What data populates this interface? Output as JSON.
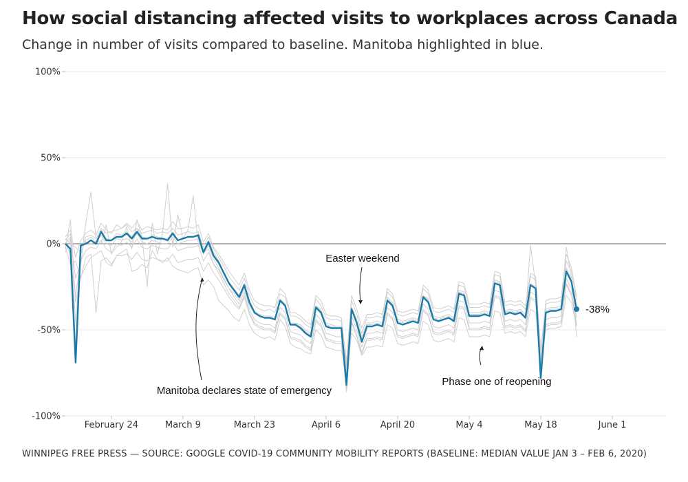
{
  "title": "How social distancing affected visits to workplaces across Canada",
  "subtitle": "Change in number of visits compared to baseline. Manitoba highlighted in blue.",
  "footer": "WINNIPEG FREE PRESS — SOURCE: GOOGLE COVID-19 COMMUNITY MOBILITY REPORTS (BASELINE: MEDIAN VALUE JAN 3 – FEB 6, 2020)",
  "colors": {
    "highlight": "#1a7aa8",
    "context": "#cfcfcf",
    "grid": "#e8e8e8",
    "zero": "#999999"
  },
  "chart_data": {
    "type": "line",
    "x_start": "2020-02-15",
    "ylim": [
      -100,
      100
    ],
    "yticks": [
      {
        "value": 100,
        "label": "100%"
      },
      {
        "value": 50,
        "label": "50%"
      },
      {
        "value": 0,
        "label": "0%"
      },
      {
        "value": -50,
        "label": "-50%"
      },
      {
        "value": -100,
        "label": "-100%"
      }
    ],
    "xticks": [
      {
        "date": "2020-02-24",
        "label": "February 24"
      },
      {
        "date": "2020-03-09",
        "label": "March  9"
      },
      {
        "date": "2020-03-23",
        "label": "March 23"
      },
      {
        "date": "2020-04-06",
        "label": "April  6"
      },
      {
        "date": "2020-04-20",
        "label": "April 20"
      },
      {
        "date": "2020-05-04",
        "label": "May  4"
      },
      {
        "date": "2020-05-18",
        "label": "May 18"
      },
      {
        "date": "2020-06-01",
        "label": "June  1"
      }
    ],
    "highlight_series": {
      "name": "Manitoba",
      "values": [
        0,
        -3,
        -69,
        -1,
        0,
        2,
        0,
        7,
        2,
        2,
        4,
        4,
        6,
        3,
        7,
        3,
        3,
        4,
        3,
        3,
        2,
        6,
        2,
        3,
        4,
        4,
        5,
        -5,
        1,
        -7,
        -11,
        -17,
        -23,
        -27,
        -31,
        -24,
        -34,
        -40,
        -42,
        -43,
        -43,
        -44,
        -33,
        -36,
        -47,
        -47,
        -49,
        -52,
        -54,
        -37,
        -40,
        -48,
        -49,
        -49,
        -49,
        -82,
        -38,
        -46,
        -57,
        -48,
        -48,
        -47,
        -48,
        -33,
        -36,
        -46,
        -47,
        -46,
        -45,
        -46,
        -31,
        -34,
        -44,
        -45,
        -44,
        -43,
        -45,
        -29,
        -30,
        -42,
        -42,
        -42,
        -41,
        -42,
        -23,
        -24,
        -41,
        -40,
        -41,
        -40,
        -43,
        -24,
        -26,
        -78,
        -40,
        -39,
        -39,
        -38,
        -16,
        -22,
        -38
      ],
      "end_label": "-38%"
    },
    "context_series": [
      {
        "values": [
          -3,
          14,
          -34,
          -19,
          -13,
          -8,
          -6,
          -4,
          -11,
          -13,
          -7,
          -5,
          -3,
          -16,
          -15,
          -12,
          -14,
          -4,
          -9,
          -11,
          -8,
          -13,
          -15,
          -16,
          -17,
          -15,
          -14,
          -24,
          -21,
          -25,
          -33,
          -36,
          -39,
          -43,
          -45,
          -38,
          -47,
          -52,
          -54,
          -55,
          -54,
          -56,
          -44,
          -48,
          -58,
          -60,
          -61,
          -63,
          -64,
          -50,
          -53,
          -60,
          -61,
          -62,
          -62,
          -77,
          -52,
          -56,
          -65,
          -60,
          -60,
          -59,
          -60,
          -47,
          -49,
          -58,
          -59,
          -58,
          -57,
          -58,
          -45,
          -47,
          -56,
          -57,
          -56,
          -55,
          -57,
          -43,
          -44,
          -54,
          -54,
          -54,
          -53,
          -54,
          -39,
          -40,
          -52,
          -51,
          -52,
          -51,
          -54,
          -38,
          -40,
          -70,
          -50,
          -49,
          -49,
          -48,
          -30,
          -34,
          -48
        ]
      },
      {
        "values": [
          2,
          6,
          -46,
          -6,
          4,
          5,
          3,
          9,
          6,
          7,
          8,
          9,
          11,
          7,
          9,
          6,
          7,
          8,
          6,
          7,
          6,
          9,
          5,
          6,
          7,
          6,
          7,
          -2,
          4,
          -3,
          -8,
          -13,
          -19,
          -23,
          -27,
          -20,
          -30,
          -36,
          -38,
          -39,
          -38,
          -40,
          -29,
          -31,
          -42,
          -42,
          -44,
          -47,
          -49,
          -32,
          -36,
          -43,
          -44,
          -44,
          -45,
          -71,
          -33,
          -41,
          -52,
          -43,
          -43,
          -42,
          -43,
          -28,
          -31,
          -41,
          -42,
          -41,
          -40,
          -41,
          -26,
          -29,
          -39,
          -40,
          -39,
          -38,
          -40,
          -24,
          -25,
          -37,
          -37,
          -37,
          -36,
          -37,
          -18,
          -19,
          -36,
          -35,
          -36,
          -35,
          -38,
          -19,
          -21,
          -66,
          -35,
          -34,
          -34,
          -33,
          -10,
          -16,
          -33
        ]
      },
      {
        "values": [
          -5,
          3,
          -60,
          -2,
          1,
          0,
          1,
          5,
          0,
          -1,
          3,
          2,
          3,
          1,
          6,
          1,
          0,
          2,
          1,
          0,
          0,
          4,
          0,
          1,
          2,
          2,
          3,
          -6,
          -1,
          -9,
          -14,
          -20,
          -26,
          -31,
          -35,
          -28,
          -38,
          -44,
          -46,
          -47,
          -47,
          -49,
          -37,
          -40,
          -51,
          -52,
          -53,
          -56,
          -58,
          -41,
          -44,
          -52,
          -53,
          -54,
          -54,
          -79,
          -42,
          -50,
          -60,
          -52,
          -52,
          -51,
          -52,
          -37,
          -40,
          -50,
          -51,
          -50,
          -49,
          -50,
          -35,
          -38,
          -48,
          -49,
          -48,
          -47,
          -49,
          -33,
          -34,
          -46,
          -46,
          -46,
          -45,
          -46,
          -27,
          -28,
          -45,
          -44,
          -45,
          -44,
          -47,
          -28,
          -30,
          -72,
          -44,
          -43,
          -43,
          -42,
          -20,
          -26,
          -43
        ]
      },
      {
        "values": [
          4,
          8,
          -8,
          2,
          6,
          8,
          5,
          12,
          8,
          6,
          11,
          9,
          12,
          9,
          13,
          8,
          10,
          9,
          8,
          9,
          8,
          13,
          9,
          9,
          10,
          9,
          11,
          1,
          6,
          -2,
          -6,
          -11,
          -16,
          -20,
          -24,
          -17,
          -27,
          -33,
          -35,
          -36,
          -36,
          -37,
          -26,
          -29,
          -40,
          -40,
          -42,
          -45,
          -47,
          -30,
          -33,
          -41,
          -42,
          -42,
          -43,
          -68,
          -30,
          -38,
          -49,
          -41,
          -41,
          -40,
          -41,
          -26,
          -29,
          -39,
          -40,
          -39,
          -38,
          -39,
          -24,
          -27,
          -37,
          -38,
          -37,
          -36,
          -38,
          -22,
          -23,
          -35,
          -35,
          -35,
          -34,
          -35,
          -16,
          -17,
          -34,
          -33,
          -34,
          -33,
          -36,
          -17,
          -19,
          -62,
          -33,
          -32,
          -32,
          -31,
          -6,
          -14,
          -31
        ]
      },
      {
        "values": [
          1,
          -6,
          -30,
          -10,
          -4,
          -2,
          -3,
          2,
          -3,
          -5,
          0,
          -1,
          1,
          -2,
          3,
          -2,
          -3,
          -1,
          -2,
          -3,
          -3,
          1,
          -4,
          -3,
          -2,
          -2,
          -1,
          -10,
          -5,
          -12,
          -17,
          -23,
          -29,
          -33,
          -37,
          -30,
          -40,
          -46,
          -48,
          -49,
          -49,
          -51,
          -40,
          -43,
          -54,
          -55,
          -56,
          -59,
          -61,
          -44,
          -47,
          -55,
          -56,
          -57,
          -57,
          -84,
          -45,
          -53,
          -63,
          -55,
          -55,
          -54,
          -55,
          -40,
          -43,
          -53,
          -54,
          -53,
          -52,
          -53,
          -38,
          -41,
          -51,
          -52,
          -51,
          -50,
          -52,
          -36,
          -37,
          -49,
          -49,
          -49,
          -48,
          -49,
          -30,
          -31,
          -48,
          -47,
          -48,
          -47,
          -50,
          -31,
          -33,
          -74,
          -47,
          -46,
          -46,
          -45,
          -23,
          -29,
          -46
        ]
      },
      {
        "values": [
          0,
          4,
          -20,
          -12,
          12,
          30,
          3,
          0,
          11,
          -6,
          -2,
          1,
          10,
          -3,
          14,
          4,
          -25,
          12,
          -6,
          6,
          35,
          -2,
          17,
          3,
          8,
          28,
          0,
          -5,
          -3,
          -12,
          -15,
          -21,
          -26,
          -29,
          -33,
          -26,
          -36,
          -40,
          -42,
          -43,
          -43,
          -44,
          -33,
          -35,
          -46,
          -46,
          -47,
          -50,
          -52,
          -36,
          -38,
          -46,
          -47,
          -48,
          -48,
          -74,
          -37,
          -44,
          -54,
          -46,
          -46,
          -45,
          -46,
          -31,
          -34,
          -44,
          -45,
          -44,
          -43,
          -44,
          -30,
          -32,
          -42,
          -43,
          -42,
          -41,
          -43,
          -27,
          -28,
          -40,
          -40,
          -40,
          -39,
          -40,
          -21,
          -22,
          -39,
          -38,
          -39,
          -38,
          -41,
          -1,
          -24,
          -70,
          -38,
          -37,
          -37,
          -36,
          -2,
          -20,
          -54
        ]
      },
      {
        "values": [
          -2,
          -12,
          -10,
          -20,
          -8,
          -6,
          -40,
          -10,
          -8,
          -12,
          -7,
          -7,
          -6,
          -9,
          -5,
          -9,
          -10,
          -8,
          -9,
          -10,
          -10,
          -6,
          -11,
          -10,
          -9,
          -9,
          -8,
          -16,
          -11,
          -17,
          -21,
          -26,
          -31,
          -35,
          -38,
          -31,
          -41,
          -47,
          -49,
          -50,
          -50,
          -52,
          -41,
          -44,
          -55,
          -56,
          -57,
          -60,
          -62,
          -45,
          -48,
          -56,
          -57,
          -58,
          -58,
          -86,
          -46,
          -54,
          -64,
          -56,
          -56,
          -55,
          -56,
          -41,
          -44,
          -54,
          -55,
          -54,
          -53,
          -54,
          -39,
          -42,
          -52,
          -53,
          -52,
          -51,
          -53,
          -37,
          -38,
          -50,
          -50,
          -50,
          -49,
          -50,
          -31,
          -32,
          -49,
          -48,
          -49,
          -48,
          -51,
          -32,
          -34,
          -75,
          -48,
          -47,
          -47,
          -46,
          -24,
          -30,
          -47
        ]
      },
      {
        "values": [
          3,
          0,
          -2,
          -5,
          2,
          4,
          1,
          8,
          3,
          2,
          6,
          5,
          7,
          4,
          9,
          4,
          3,
          5,
          4,
          3,
          3,
          7,
          2,
          3,
          4,
          4,
          5,
          -4,
          2,
          -5,
          -10,
          -16,
          -22,
          -26,
          -30,
          -23,
          -33,
          -39,
          -41,
          -42,
          -42,
          -43,
          -32,
          -35,
          -46,
          -46,
          -48,
          -51,
          -53,
          -36,
          -39,
          -47,
          -48,
          -48,
          -48,
          -76,
          -37,
          -45,
          -56,
          -47,
          -47,
          -46,
          -47,
          -32,
          -35,
          -45,
          -46,
          -45,
          -44,
          -45,
          -30,
          -33,
          -43,
          -44,
          -43,
          -42,
          -44,
          -28,
          -29,
          -41,
          -41,
          -41,
          -40,
          -41,
          -22,
          -23,
          -40,
          -39,
          -40,
          -39,
          -42,
          -23,
          -25,
          -70,
          -39,
          -38,
          -38,
          -37,
          -14,
          -21,
          -37
        ]
      }
    ],
    "annotations": [
      {
        "label": "Manitoba declares state of emergency"
      },
      {
        "label": "Easter weekend"
      },
      {
        "label": "Phase one of reopening"
      }
    ]
  }
}
